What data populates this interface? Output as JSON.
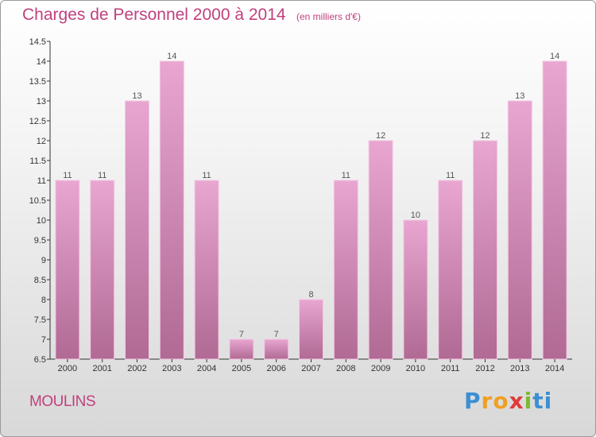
{
  "chart_data": {
    "type": "bar",
    "title": "Charges de Personnel 2000 à 2014",
    "subtitle": "(en milliers d'€)",
    "categories": [
      "2000",
      "2001",
      "2002",
      "2003",
      "2004",
      "2005",
      "2006",
      "2007",
      "2008",
      "2009",
      "2010",
      "2011",
      "2012",
      "2013",
      "2014"
    ],
    "values": [
      11,
      11,
      13,
      14,
      11,
      7,
      7,
      8,
      11,
      12,
      10,
      11,
      12,
      13,
      14
    ],
    "ylim": [
      6.5,
      14.5
    ],
    "yticks": [
      "6.5",
      "7",
      "7.5",
      "8",
      "8.5",
      "9",
      "9.5",
      "10",
      "10.5",
      "11",
      "11.5",
      "12",
      "12.5",
      "13",
      "13.5",
      "14",
      "14.5"
    ],
    "grid": false,
    "bar_color": "#d98ab8"
  },
  "footer": {
    "commune": "MOULINS",
    "logo_letters": [
      "P",
      "r",
      "o",
      "x",
      "i",
      "ti"
    ]
  }
}
